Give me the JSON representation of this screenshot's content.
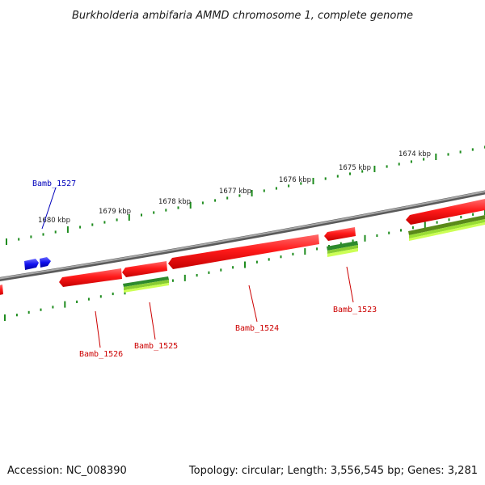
{
  "title": "Burkholderia ambifaria AMMD chromosome 1, complete genome",
  "accession": "Accession: NC_008390",
  "summary": "Topology: circular; Length: 3,556,545 bp; Genes: 3,281",
  "colors": {
    "backbone": "#8c8c8c",
    "tick": "#1e8c1e",
    "gene_forward": "#ff1a1a",
    "gene_label_bottom": "#cc0000",
    "gene_label_top": "#0000bb",
    "gene_blue": "#1010ee",
    "rna_band_dark": "#2d8a2d",
    "rna_band_light": "#ccff55"
  },
  "scale_labels": [
    "1680 kbp",
    "1679 kbp",
    "1678 kbp",
    "1677 kbp",
    "1676 kbp",
    "1675 kbp",
    "1674 kbp"
  ],
  "gene_labels": [
    {
      "text": "Bamb_1527",
      "side": "top"
    },
    {
      "text": "Bamb_1526",
      "side": "bottom"
    },
    {
      "text": "Bamb_1525",
      "side": "bottom"
    },
    {
      "text": "Bamb_1524",
      "side": "bottom"
    },
    {
      "text": "Bamb_1523",
      "side": "bottom"
    }
  ]
}
